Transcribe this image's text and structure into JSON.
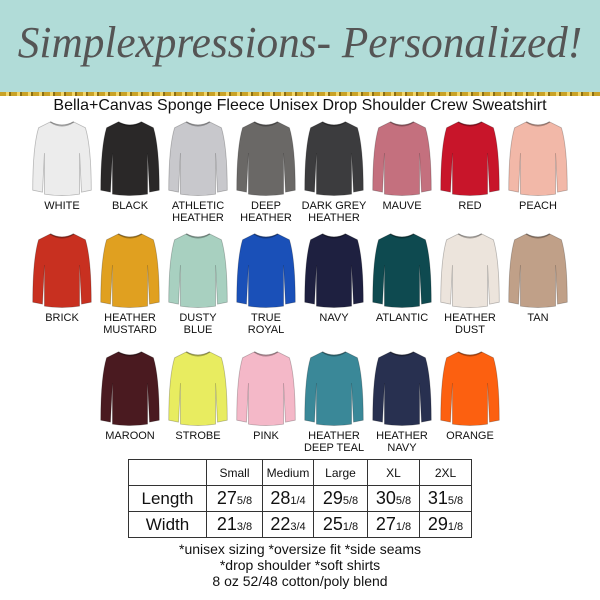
{
  "header": {
    "brand": "Simplexpressions- Personalized!",
    "banner_color": "#b1dcd8"
  },
  "subtitle": "Bella+Canvas Sponge Fleece Unisex Drop Shoulder Crew Sweatshirt",
  "colors": [
    [
      {
        "name": "WHITE",
        "hex": "#ececec"
      },
      {
        "name": "BLACK",
        "hex": "#2a2828"
      },
      {
        "name": "ATHLETIC HEATHER",
        "hex": "#c8c8cc"
      },
      {
        "name": "DEEP HEATHER",
        "hex": "#6a6866"
      },
      {
        "name": "DARK GREY HEATHER",
        "hex": "#3c3c3e"
      },
      {
        "name": "MAUVE",
        "hex": "#c4707e"
      },
      {
        "name": "RED",
        "hex": "#c8152a"
      },
      {
        "name": "PEACH",
        "hex": "#f2b8a8"
      }
    ],
    [
      {
        "name": "BRICK",
        "hex": "#c83020"
      },
      {
        "name": "HEATHER MUSTARD",
        "hex": "#e0a020"
      },
      {
        "name": "DUSTY BLUE",
        "hex": "#a8d0c0"
      },
      {
        "name": "TRUE ROYAL",
        "hex": "#1a50b8"
      },
      {
        "name": "NAVY",
        "hex": "#1e2040"
      },
      {
        "name": "ATLANTIC",
        "hex": "#0e4a50"
      },
      {
        "name": "HEATHER DUST",
        "hex": "#ece4dc"
      },
      {
        "name": "TAN",
        "hex": "#c0a088"
      }
    ],
    [
      {
        "name": "MAROON",
        "hex": "#4a1a20"
      },
      {
        "name": "STROBE",
        "hex": "#e8ec60"
      },
      {
        "name": "PINK",
        "hex": "#f4b8c8"
      },
      {
        "name": "HEATHER DEEP TEAL",
        "hex": "#3a8898"
      },
      {
        "name": "HEATHER NAVY",
        "hex": "#283050"
      },
      {
        "name": "ORANGE",
        "hex": "#fc6010"
      }
    ]
  ],
  "size_table": {
    "headers": [
      "",
      "Small",
      "Medium",
      "Large",
      "XL",
      "2XL"
    ],
    "rows": [
      {
        "label": "Length",
        "values": [
          [
            "27",
            "5/8"
          ],
          [
            "28",
            "1/4"
          ],
          [
            "29",
            "5/8"
          ],
          [
            "30",
            "5/8"
          ],
          [
            "31",
            "5/8"
          ]
        ]
      },
      {
        "label": "Width",
        "values": [
          [
            "21",
            "3/8"
          ],
          [
            "22",
            "3/4"
          ],
          [
            "25",
            "1/8"
          ],
          [
            "27",
            "1/8"
          ],
          [
            "29",
            "1/8"
          ]
        ]
      }
    ]
  },
  "notes": [
    "*unisex sizing *oversize fit *side seams",
    "*drop shoulder *soft shirts",
    "8 oz 52/48 cotton/poly blend"
  ]
}
